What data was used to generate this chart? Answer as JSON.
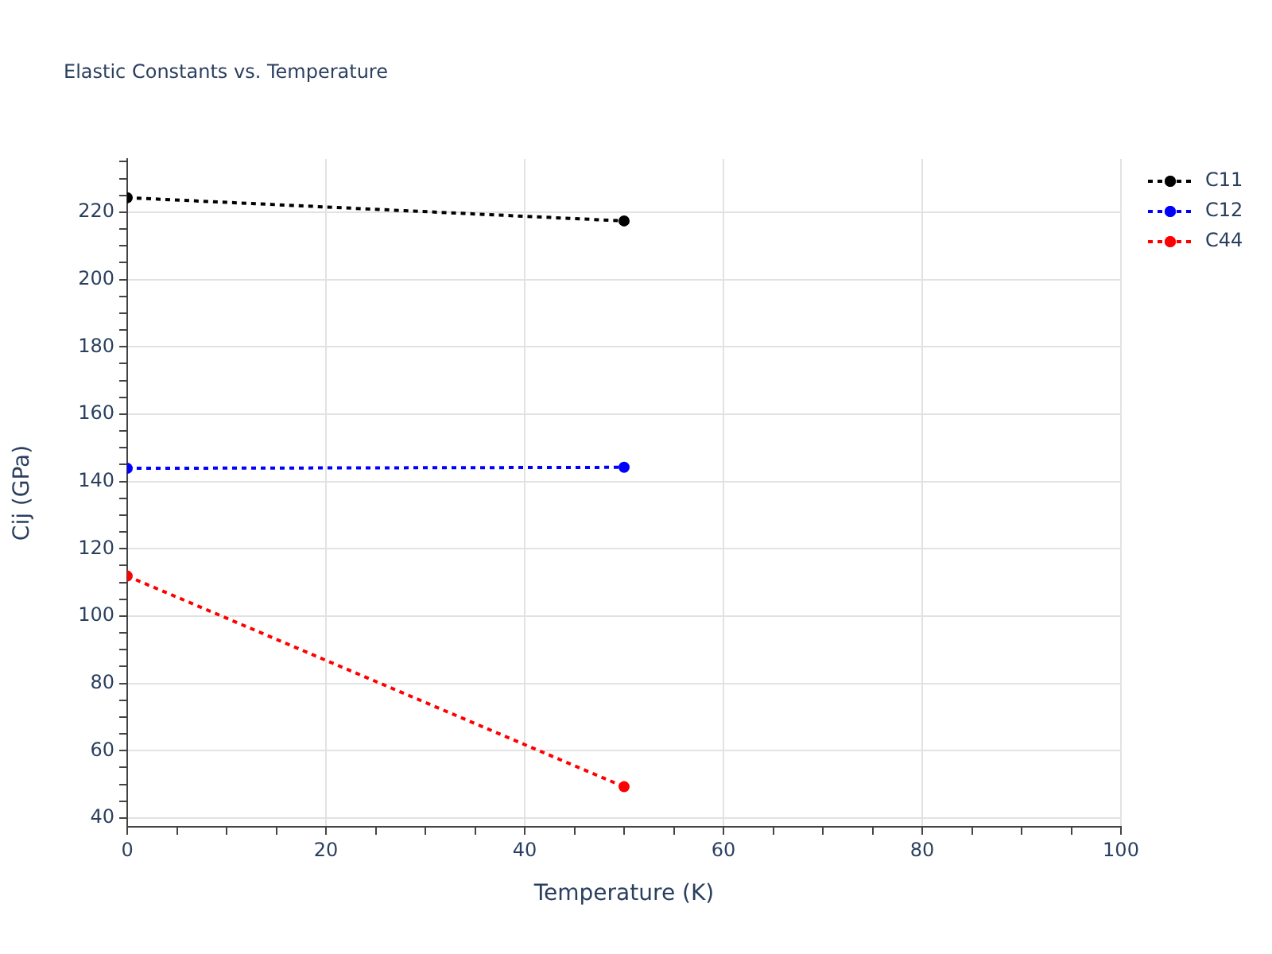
{
  "chart_data": {
    "type": "line",
    "title": "Elastic Constants vs. Temperature",
    "xlabel": "Temperature (K)",
    "ylabel": "Cij (GPa)",
    "x": [
      0,
      50
    ],
    "series": [
      {
        "name": "C11",
        "color": "#000000",
        "values": [
          224.3,
          217.4
        ]
      },
      {
        "name": "C12",
        "color": "#0000ff",
        "values": [
          143.9,
          144.2
        ]
      },
      {
        "name": "C44",
        "color": "#ff0000",
        "values": [
          111.9,
          49.3
        ]
      }
    ],
    "xlim": [
      0,
      100
    ],
    "xticks": [
      0,
      {
        "value": 5,
        "label": null
      },
      {
        "value": 10,
        "label": null
      },
      {
        "value": 15,
        "label": null
      },
      20,
      {
        "value": 25,
        "label": null
      },
      {
        "value": 30,
        "label": null
      },
      {
        "value": 35,
        "label": null
      },
      40,
      {
        "value": 45,
        "label": null
      },
      {
        "value": 50,
        "label": null
      },
      {
        "value": 55,
        "label": null
      },
      60,
      {
        "value": 65,
        "label": null
      },
      {
        "value": 70,
        "label": null
      },
      {
        "value": 75,
        "label": null
      },
      80,
      {
        "value": 85,
        "label": null
      },
      {
        "value": 90,
        "label": null
      },
      {
        "value": 95,
        "label": null
      },
      100
    ],
    "ylim": [
      37.4,
      235.8
    ],
    "yticks": [
      40,
      {
        "value": 45,
        "label": null
      },
      {
        "value": 50,
        "label": null
      },
      {
        "value": 55,
        "label": null
      },
      60,
      {
        "value": 65,
        "label": null
      },
      {
        "value": 70,
        "label": null
      },
      {
        "value": 75,
        "label": null
      },
      80,
      {
        "value": 85,
        "label": null
      },
      {
        "value": 90,
        "label": null
      },
      {
        "value": 95,
        "label": null
      },
      100,
      {
        "value": 105,
        "label": null
      },
      {
        "value": 110,
        "label": null
      },
      {
        "value": 115,
        "label": null
      },
      120,
      {
        "value": 125,
        "label": null
      },
      {
        "value": 130,
        "label": null
      },
      {
        "value": 135,
        "label": null
      },
      140,
      {
        "value": 145,
        "label": null
      },
      {
        "value": 150,
        "label": null
      },
      {
        "value": 155,
        "label": null
      },
      160,
      {
        "value": 165,
        "label": null
      },
      {
        "value": 170,
        "label": null
      },
      {
        "value": 175,
        "label": null
      },
      180,
      {
        "value": 185,
        "label": null
      },
      {
        "value": 190,
        "label": null
      },
      {
        "value": 195,
        "label": null
      },
      200,
      {
        "value": 205,
        "label": null
      },
      {
        "value": 210,
        "label": null
      },
      {
        "value": 215,
        "label": null
      },
      220,
      {
        "value": 225,
        "label": null
      },
      {
        "value": 230,
        "label": null
      },
      {
        "value": 235,
        "label": null
      }
    ],
    "grid": true,
    "legend": "top right",
    "marker": "circle",
    "line_style": "dotted"
  }
}
